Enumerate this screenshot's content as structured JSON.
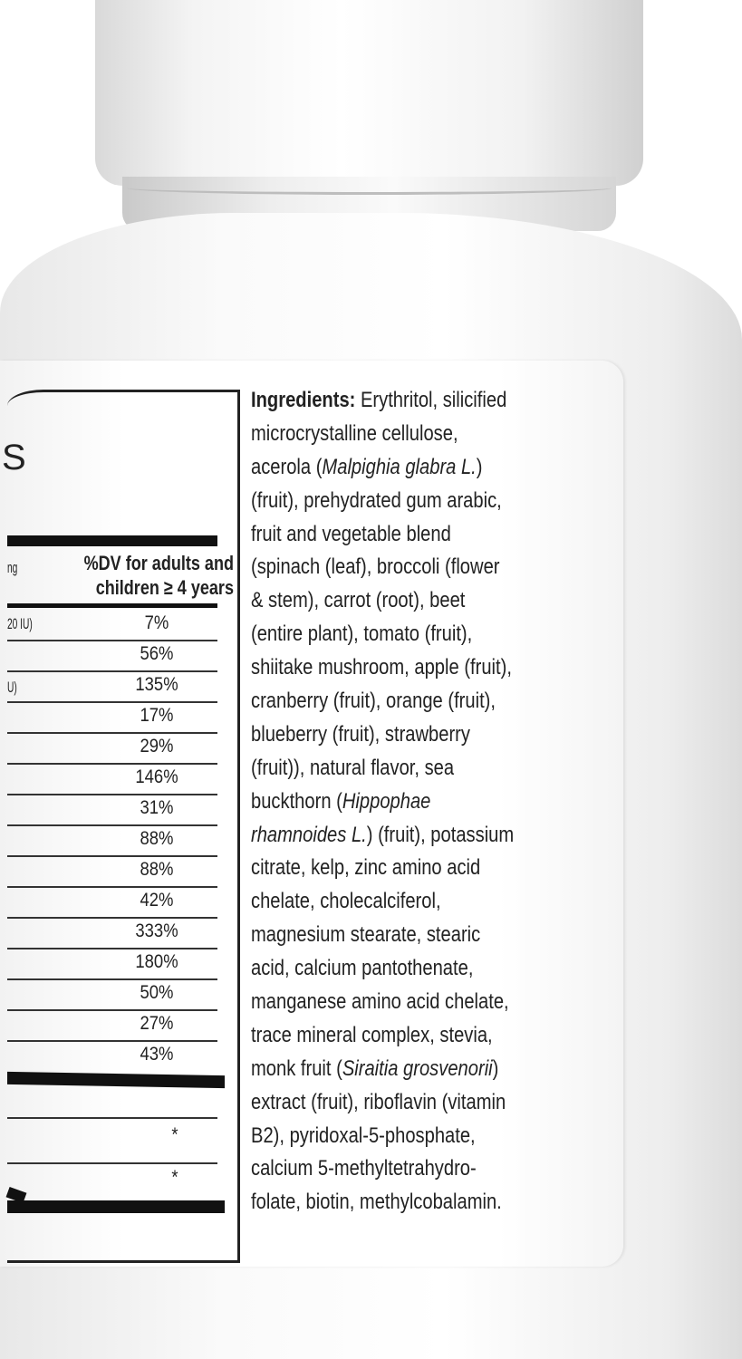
{
  "colors": {
    "text": "#222222",
    "bottle": "#ffffff"
  },
  "facts_panel": {
    "fragments": {
      "title_letter": "S",
      "serving_unit": "ng",
      "row1_unit": "20 IU)",
      "row3_unit": "U)"
    },
    "dv_header": [
      "%DV for adults and",
      "children ≥ 4 years"
    ],
    "dv_values": [
      "7%",
      "56%",
      "135%",
      "17%",
      "29%",
      "146%",
      "31%",
      "88%",
      "88%",
      "42%",
      "333%",
      "180%",
      "50%",
      "27%",
      "43%"
    ],
    "footnote_marks": [
      "*",
      "*"
    ]
  },
  "ingredients": {
    "lines": [
      [
        {
          "t": "Ingredients:",
          "s": "b"
        },
        {
          "t": " Erythritol, silicified"
        }
      ],
      [
        {
          "t": "microcrystalline cellulose,"
        }
      ],
      [
        {
          "t": "acerola ("
        },
        {
          "t": "Malpighia glabra L.",
          "s": "i"
        },
        {
          "t": ")"
        }
      ],
      [
        {
          "t": "(fruit), prehydrated gum arabic,"
        }
      ],
      [
        {
          "t": "fruit and vegetable blend"
        }
      ],
      [
        {
          "t": "(spinach (leaf), broccoli (flower"
        }
      ],
      [
        {
          "t": "& stem), carrot (root), beet"
        }
      ],
      [
        {
          "t": "(entire plant), tomato (fruit),"
        }
      ],
      [
        {
          "t": "shiitake mushroom, apple (fruit),"
        }
      ],
      [
        {
          "t": "cranberry (fruit), orange (fruit),"
        }
      ],
      [
        {
          "t": "blueberry (fruit), strawberry"
        }
      ],
      [
        {
          "t": "(fruit)), natural flavor, sea"
        }
      ],
      [
        {
          "t": "buckthorn ("
        },
        {
          "t": "Hippophae",
          "s": "i"
        }
      ],
      [
        {
          "t": "rhamnoides L.",
          "s": "i"
        },
        {
          "t": ") (fruit), potassium"
        }
      ],
      [
        {
          "t": "citrate, kelp, zinc amino acid"
        }
      ],
      [
        {
          "t": "chelate, cholecalciferol,"
        }
      ],
      [
        {
          "t": "magnesium stearate, stearic"
        }
      ],
      [
        {
          "t": "acid, calcium pantothenate,"
        }
      ],
      [
        {
          "t": "manganese amino acid chelate,"
        }
      ],
      [
        {
          "t": "trace mineral complex, stevia,"
        }
      ],
      [
        {
          "t": "monk fruit ("
        },
        {
          "t": "Siraitia grosvenorii",
          "s": "i"
        },
        {
          "t": ")"
        }
      ],
      [
        {
          "t": "extract (fruit), riboflavin (vitamin"
        }
      ],
      [
        {
          "t": "B2), pyridoxal-5-phosphate,"
        }
      ],
      [
        {
          "t": "calcium 5-methyltetrahydro-"
        }
      ],
      [
        {
          "t": "folate, biotin, methylcobalamin."
        }
      ]
    ]
  }
}
